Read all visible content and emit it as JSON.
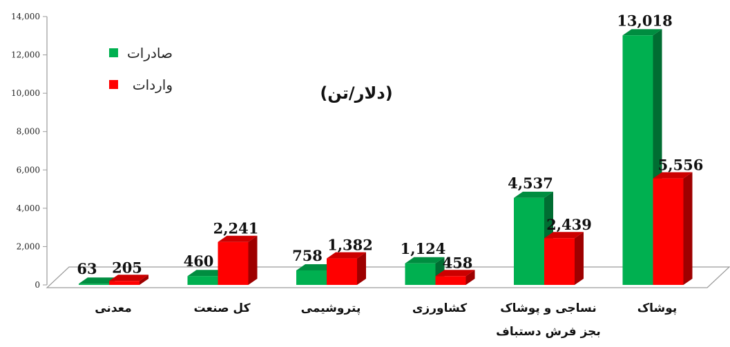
{
  "chart_data": {
    "type": "bar",
    "title": "(دلار/تن)",
    "categories": [
      "معدنی",
      "کل صنعت",
      "پتروشیمی",
      "کشاورزی",
      "نساجی و پوشاک بجز فرش دستباف",
      "پوشاک"
    ],
    "categories_lines": [
      [
        "معدنی"
      ],
      [
        "کل صنعت"
      ],
      [
        "پتروشیمی"
      ],
      [
        "کشاورزی"
      ],
      [
        "نساجی و پوشاک",
        "بجز فرش دستباف"
      ],
      [
        "پوشاک"
      ]
    ],
    "series": [
      {
        "name": "صادرات",
        "color": "#00B050",
        "values": [
          63,
          460,
          758,
          1124,
          4537,
          13018
        ]
      },
      {
        "name": "واردات",
        "color": "#FF0000",
        "values": [
          205,
          2241,
          1382,
          458,
          2439,
          5556
        ]
      }
    ],
    "value_labels": [
      [
        "63",
        "460",
        "758",
        "1,124",
        "4,537",
        "13,018"
      ],
      [
        "205",
        "2,241",
        "1,382",
        "458",
        "2,439",
        "5,556"
      ]
    ],
    "ylim": [
      0,
      14000
    ],
    "yticks": [
      0,
      2000,
      4000,
      6000,
      8000,
      10000,
      12000,
      14000
    ],
    "ytick_labels": [
      "0",
      "2,000",
      "4,000",
      "6,000",
      "8,000",
      "10,000",
      "12,000",
      "14,000"
    ],
    "grid": false,
    "legend_position": "top-left",
    "xlabel": "",
    "ylabel": ""
  }
}
